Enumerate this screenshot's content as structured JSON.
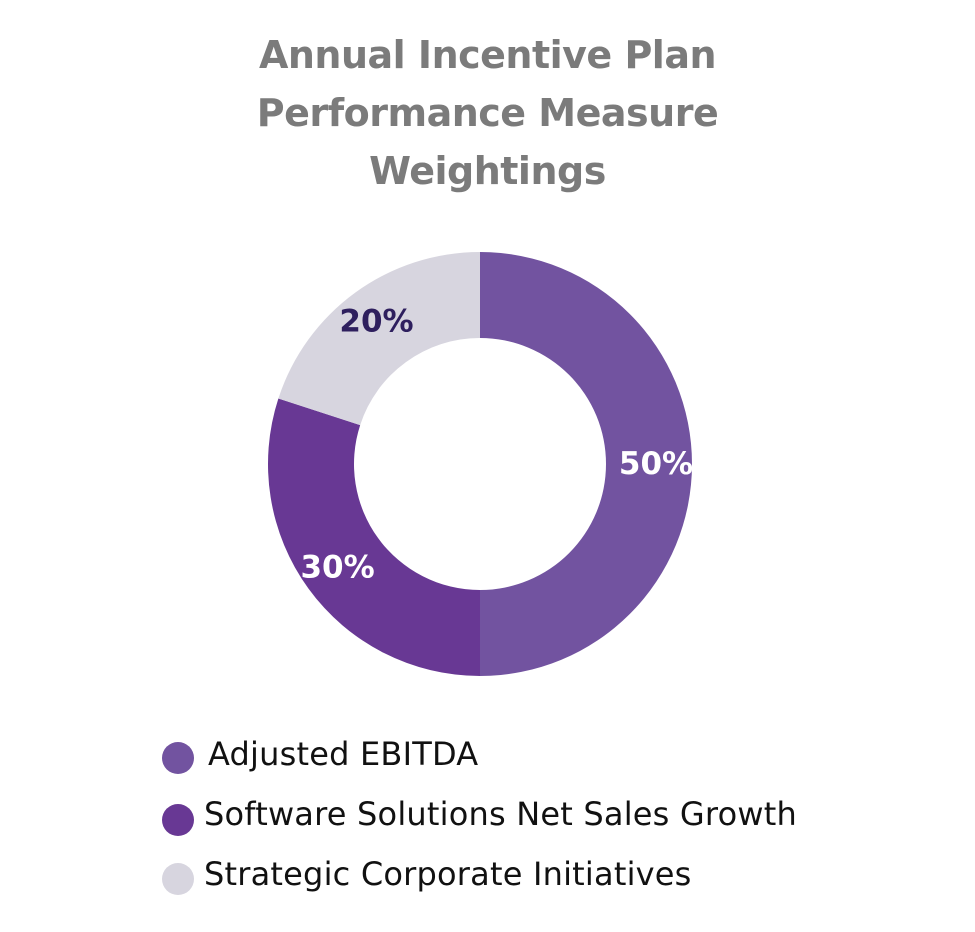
{
  "chart_data": {
    "type": "pie",
    "title_lines": [
      "Annual Incentive Plan",
      "Performance Measure",
      "Weightings"
    ],
    "slices": [
      {
        "name": "Adjusted EBITDA",
        "value": 50,
        "label": "50%",
        "color": "#7253a0",
        "label_color": "#ffffff"
      },
      {
        "name": "Software Solutions Net Sales Growth",
        "value": 30,
        "label": "30%",
        "color": "#683894",
        "label_color": "#ffffff"
      },
      {
        "name": "Strategic Corporate Initiatives",
        "value": 20,
        "label": "20%",
        "color": "#d7d5df",
        "label_color": "#2e1f5e"
      }
    ],
    "donut": true,
    "legend_position": "bottom-left"
  }
}
